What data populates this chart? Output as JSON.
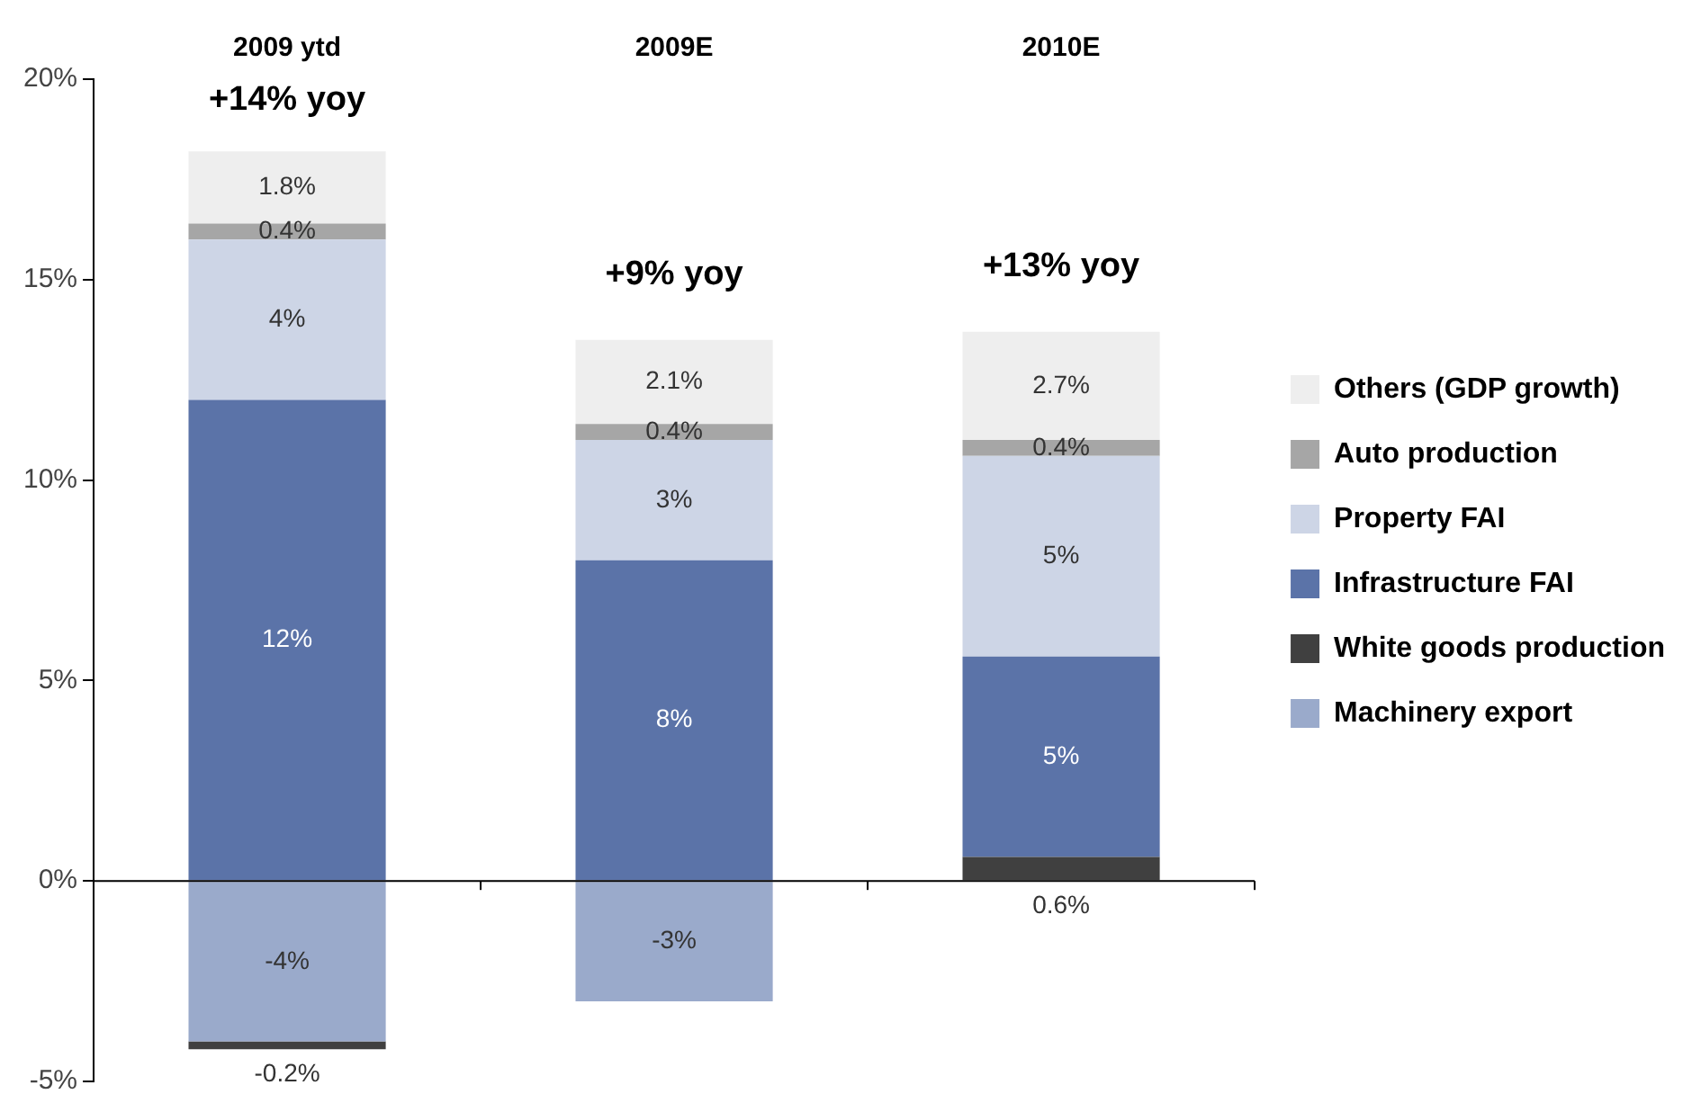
{
  "chart_data": {
    "type": "bar",
    "stacked": true,
    "categories": [
      "2009 ytd",
      "2009E",
      "2010E"
    ],
    "series": [
      {
        "name": "Machinery export",
        "color": "#9aaacb",
        "values": [
          -4,
          -3,
          null
        ],
        "value_labels": [
          "-4%",
          "-3%",
          null
        ]
      },
      {
        "name": "White goods production",
        "color": "#404040",
        "values": [
          -0.2,
          null,
          0.6
        ],
        "value_labels": [
          "-0.2%",
          null,
          "0.6%"
        ]
      },
      {
        "name": "Infrastructure FAI",
        "color": "#5b73a8",
        "values": [
          12,
          8,
          5
        ],
        "value_labels": [
          "12%",
          "8%",
          "5%"
        ]
      },
      {
        "name": "Property FAI",
        "color": "#cdd5e6",
        "values": [
          4,
          3,
          5
        ],
        "value_labels": [
          "4%",
          "3%",
          "5%"
        ]
      },
      {
        "name": "Auto production",
        "color": "#a6a6a6",
        "values": [
          0.4,
          0.4,
          0.4
        ],
        "value_labels": [
          "0.4%",
          "0.4%",
          "0.4%"
        ]
      },
      {
        "name": "Others (GDP growth)",
        "color": "#eeeeee",
        "values": [
          1.8,
          2.1,
          2.7
        ],
        "value_labels": [
          "1.8%",
          "2.1%",
          "2.7%"
        ]
      }
    ],
    "ylim": [
      -5,
      20
    ],
    "yticks": [
      {
        "value": -5,
        "label": "-5%"
      },
      {
        "value": 0,
        "label": "0%"
      },
      {
        "value": 5,
        "label": "5%"
      },
      {
        "value": 10,
        "label": "10%"
      },
      {
        "value": 15,
        "label": "15%"
      },
      {
        "value": 20,
        "label": "20%"
      }
    ],
    "annotations": [
      "+14% yoy",
      "+9% yoy",
      "+13% yoy"
    ],
    "legend": "right"
  }
}
